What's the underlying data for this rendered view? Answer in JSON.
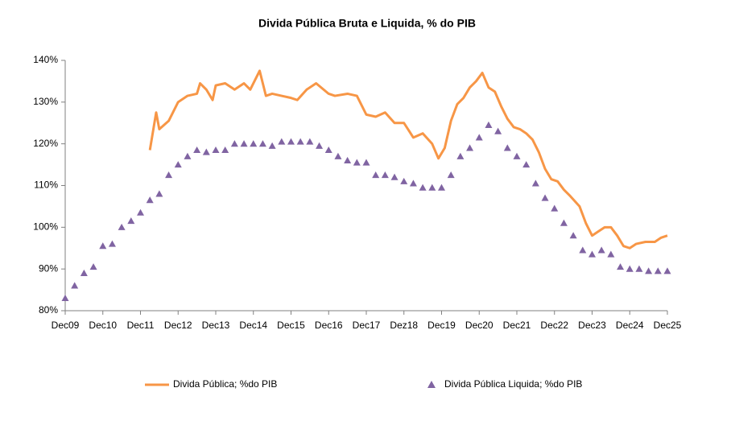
{
  "chart_data": {
    "type": "line",
    "title": "Divida Pública Bruta e Liquida, % do PIB",
    "xlim": [
      "2009-12",
      "2025-12"
    ],
    "xticks": [
      {
        "value": "2009-12",
        "label": "Dec09"
      },
      {
        "value": "2010-12",
        "label": "Dec10"
      },
      {
        "value": "2011-12",
        "label": "Dec11"
      },
      {
        "value": "2012-12",
        "label": "Dec12"
      },
      {
        "value": "2013-12",
        "label": "Dec13"
      },
      {
        "value": "2014-12",
        "label": "Dec14"
      },
      {
        "value": "2015-12",
        "label": "Dec15"
      },
      {
        "value": "2016-12",
        "label": "Dec16"
      },
      {
        "value": "2017-12",
        "label": "Dec17"
      },
      {
        "value": "2018-12",
        "label": "Dez18"
      },
      {
        "value": "2019-12",
        "label": "Dec19"
      },
      {
        "value": "2020-12",
        "label": "Dec20"
      },
      {
        "value": "2021-12",
        "label": "Dec21"
      },
      {
        "value": "2022-12",
        "label": "Dec22"
      },
      {
        "value": "2023-12",
        "label": "Dec23"
      },
      {
        "value": "2024-12",
        "label": "Dec24"
      },
      {
        "value": "2025-12",
        "label": "Dec25"
      }
    ],
    "ylim": [
      80,
      140
    ],
    "yticks": [
      {
        "value": 80,
        "label": "80%"
      },
      {
        "value": 90,
        "label": "90%"
      },
      {
        "value": 100,
        "label": "100%"
      },
      {
        "value": 110,
        "label": "110%"
      },
      {
        "value": 120,
        "label": "120%"
      },
      {
        "value": 130,
        "label": "130%"
      },
      {
        "value": 140,
        "label": "140%"
      }
    ],
    "grid": false,
    "legend": "bottom",
    "series": [
      {
        "name": "Divida Pública; %do PIB",
        "color": "#f79646",
        "marker": "line",
        "x": [
          "2012-03",
          "2012-05",
          "2012-06",
          "2012-09",
          "2012-12",
          "2013-03",
          "2013-06",
          "2013-07",
          "2013-09",
          "2013-11",
          "2013-12",
          "2014-03",
          "2014-06",
          "2014-09",
          "2014-11",
          "2015-02",
          "2015-04",
          "2015-06",
          "2015-09",
          "2015-12",
          "2016-02",
          "2016-05",
          "2016-08",
          "2016-12",
          "2017-02",
          "2017-06",
          "2017-09",
          "2017-12",
          "2018-03",
          "2018-06",
          "2018-09",
          "2018-12",
          "2019-03",
          "2019-06",
          "2019-09",
          "2019-11",
          "2020-01",
          "2020-03",
          "2020-05",
          "2020-07",
          "2020-09",
          "2020-11",
          "2021-01",
          "2021-03",
          "2021-05",
          "2021-07",
          "2021-09",
          "2021-11",
          "2022-01",
          "2022-03",
          "2022-05",
          "2022-07",
          "2022-09",
          "2022-11",
          "2023-01",
          "2023-03",
          "2023-05",
          "2023-08",
          "2023-10",
          "2023-12",
          "2024-02",
          "2024-04",
          "2024-06",
          "2024-08",
          "2024-10",
          "2024-12",
          "2025-02",
          "2025-05",
          "2025-08",
          "2025-10",
          "2025-12"
        ],
        "values": [
          118.5,
          127.5,
          123.5,
          125.5,
          130,
          131.5,
          132,
          134.5,
          133,
          130.5,
          134,
          134.5,
          133,
          134.5,
          133,
          137.5,
          131.5,
          132,
          131.5,
          131,
          130.5,
          133,
          134.5,
          132,
          131.5,
          132,
          131.5,
          127,
          126.5,
          127.5,
          125,
          125,
          121.5,
          122.5,
          120,
          116.5,
          119,
          125.5,
          129.5,
          131,
          133.5,
          135,
          137,
          133.5,
          132.5,
          129,
          126,
          124,
          123.5,
          122.5,
          121,
          118,
          114,
          111.5,
          111,
          109,
          107.5,
          105,
          101,
          98,
          99,
          100,
          100,
          98,
          95.5,
          95,
          96,
          96.5,
          96.5,
          97.5,
          98
        ]
      },
      {
        "name": "Divida Pública Liquida; %do PIB",
        "color": "#8064a2",
        "marker": "triangle",
        "x": [
          "2009-12",
          "2010-03",
          "2010-06",
          "2010-09",
          "2010-12",
          "2011-03",
          "2011-06",
          "2011-09",
          "2011-12",
          "2012-03",
          "2012-06",
          "2012-09",
          "2012-12",
          "2013-03",
          "2013-06",
          "2013-09",
          "2013-12",
          "2014-03",
          "2014-06",
          "2014-09",
          "2014-12",
          "2015-03",
          "2015-06",
          "2015-09",
          "2015-12",
          "2016-03",
          "2016-06",
          "2016-09",
          "2016-12",
          "2017-03",
          "2017-06",
          "2017-09",
          "2017-12",
          "2018-03",
          "2018-06",
          "2018-09",
          "2018-12",
          "2019-03",
          "2019-06",
          "2019-09",
          "2019-12",
          "2020-03",
          "2020-06",
          "2020-09",
          "2020-12",
          "2021-03",
          "2021-06",
          "2021-09",
          "2021-12",
          "2022-03",
          "2022-06",
          "2022-09",
          "2022-12",
          "2023-03",
          "2023-06",
          "2023-09",
          "2023-12",
          "2024-03",
          "2024-06",
          "2024-09",
          "2024-12",
          "2025-03",
          "2025-06",
          "2025-09",
          "2025-12"
        ],
        "values": [
          83,
          86,
          89,
          90.5,
          95.5,
          96,
          100,
          101.5,
          103.5,
          106.5,
          108,
          112.5,
          115,
          117,
          118.5,
          118,
          118.5,
          118.5,
          120,
          120,
          120,
          120,
          119.5,
          120.5,
          120.5,
          120.5,
          120.5,
          119.5,
          118.5,
          117,
          116,
          115.5,
          115.5,
          112.5,
          112.5,
          112,
          111,
          110.5,
          109.5,
          109.5,
          109.5,
          112.5,
          117,
          119,
          121.5,
          124.5,
          123,
          119,
          117,
          115,
          110.5,
          107,
          104.5,
          101,
          98,
          94.5,
          93.5,
          94.5,
          93.5,
          90.5,
          90,
          90,
          89.5,
          89.5,
          89.5
        ]
      }
    ]
  }
}
